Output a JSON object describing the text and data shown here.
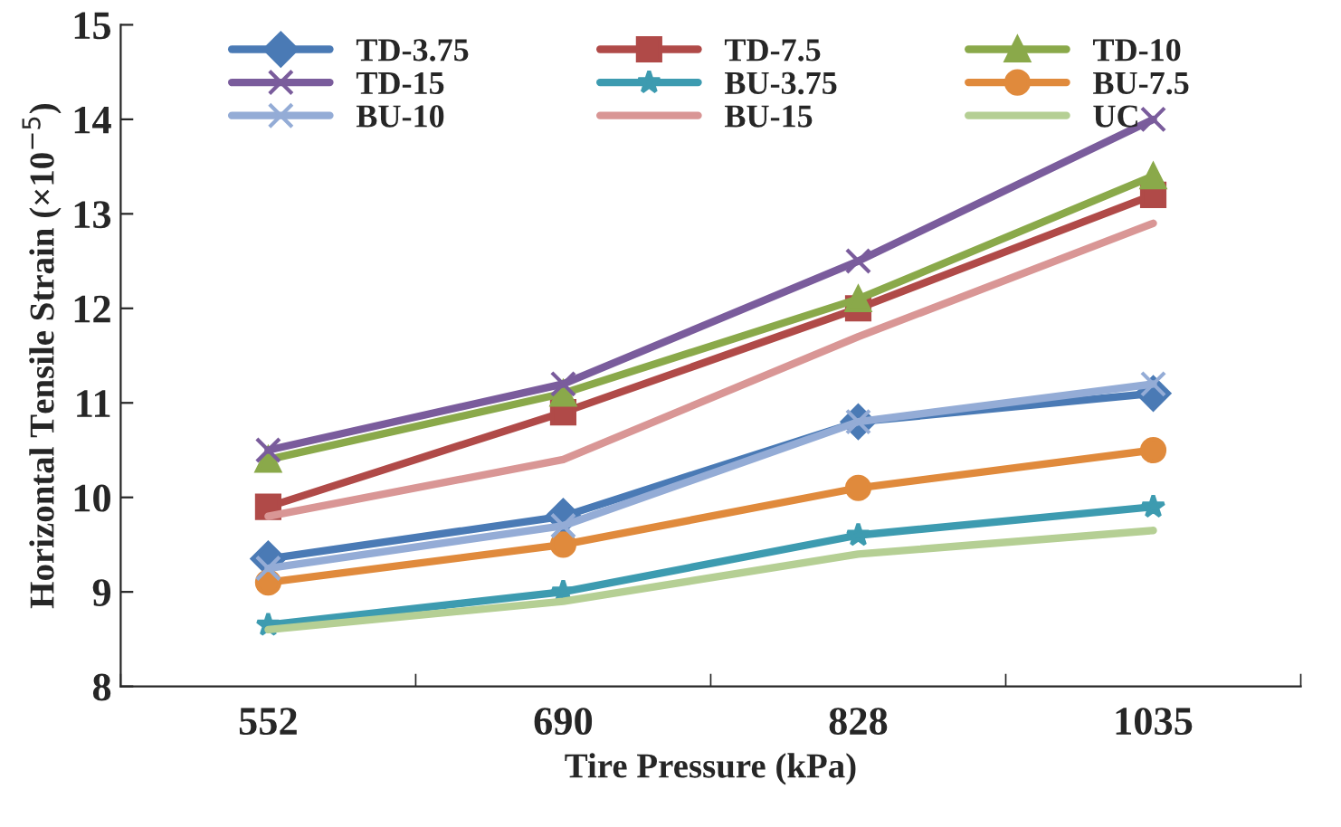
{
  "chart_data": {
    "type": "line",
    "xlabel": "Tire Pressure (kPa)",
    "ylabel": "Horizontal Tensile Strain (×10$^{−5}$)",
    "categories": [
      "552",
      "690",
      "828",
      "1035"
    ],
    "ylim": [
      8,
      15
    ],
    "yticks": [
      8,
      9,
      10,
      11,
      12,
      13,
      14,
      15
    ],
    "grid": false,
    "legend": "top",
    "series": [
      {
        "name": "TD-3.75",
        "color": "#4a7ab5",
        "marker": "diamond",
        "values": [
          9.35,
          9.8,
          10.8,
          11.1
        ]
      },
      {
        "name": "TD-7.5",
        "color": "#b04a48",
        "marker": "square",
        "values": [
          9.9,
          10.9,
          12.0,
          13.2
        ]
      },
      {
        "name": "TD-10",
        "color": "#8aa94a",
        "marker": "triangle",
        "values": [
          10.4,
          11.1,
          12.1,
          13.4
        ]
      },
      {
        "name": "TD-15",
        "color": "#7a5c9c",
        "marker": "cross",
        "values": [
          10.5,
          11.2,
          12.5,
          14.0
        ]
      },
      {
        "name": "BU-3.75",
        "color": "#3d9bb0",
        "marker": "star",
        "values": [
          8.65,
          9.0,
          9.6,
          9.9
        ]
      },
      {
        "name": "BU-7.5",
        "color": "#e08a3c",
        "marker": "circle",
        "values": [
          9.1,
          9.5,
          10.1,
          10.5
        ]
      },
      {
        "name": "BU-10",
        "color": "#94acd6",
        "marker": "cross",
        "values": [
          9.25,
          9.7,
          10.8,
          11.2
        ]
      },
      {
        "name": "BU-15",
        "color": "#d99695",
        "marker": "none",
        "values": [
          9.8,
          10.4,
          11.7,
          12.9
        ]
      },
      {
        "name": "UC",
        "color": "#b5cf94",
        "marker": "none",
        "values": [
          8.6,
          8.9,
          9.4,
          9.65
        ]
      }
    ]
  }
}
